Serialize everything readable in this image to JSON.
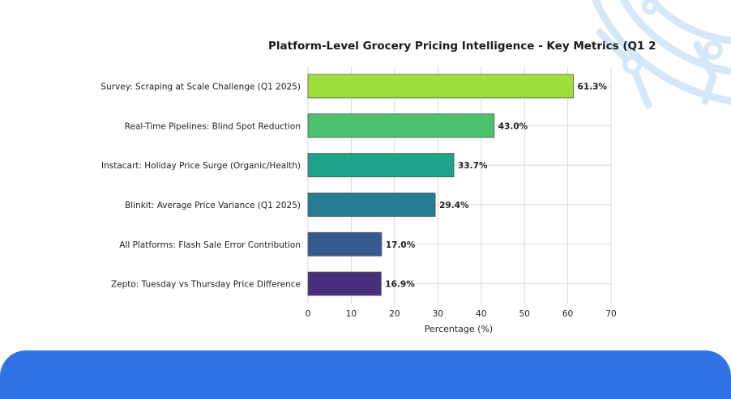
{
  "chart_data": {
    "type": "bar",
    "orientation": "horizontal",
    "title": "Platform-Level Grocery Pricing Intelligence - Key Metrics (Q1 2",
    "xlabel": "Percentage (%)",
    "ylabel": "",
    "xlim": [
      0,
      70
    ],
    "xticks": [
      "0",
      "10",
      "20",
      "30",
      "40",
      "50",
      "60",
      "70"
    ],
    "grid": true,
    "categories": [
      "Survey: Scraping at Scale Challenge (Q1 2025)",
      "Real-Time Pipelines: Blind Spot Reduction",
      "Instacart: Holiday Price Surge (Organic/Health)",
      "Blinkit: Average Price Variance (Q1 2025)",
      "All Platforms: Flash Sale Error Contribution",
      "Zepto: Tuesday vs Thursday Price Difference"
    ],
    "values": [
      61.3,
      43.0,
      33.7,
      29.4,
      17.0,
      16.9
    ],
    "value_labels": [
      "61.3%",
      "43.0%",
      "33.7%",
      "29.4%",
      "17.0%",
      "16.9%"
    ],
    "colors": [
      "#9fdf3a",
      "#4cc16e",
      "#1fa38a",
      "#277e92",
      "#355a8e",
      "#472f7d"
    ]
  },
  "theme": {
    "banner_color": "#2f73e6",
    "decoration_color": "#d6e8f8"
  }
}
